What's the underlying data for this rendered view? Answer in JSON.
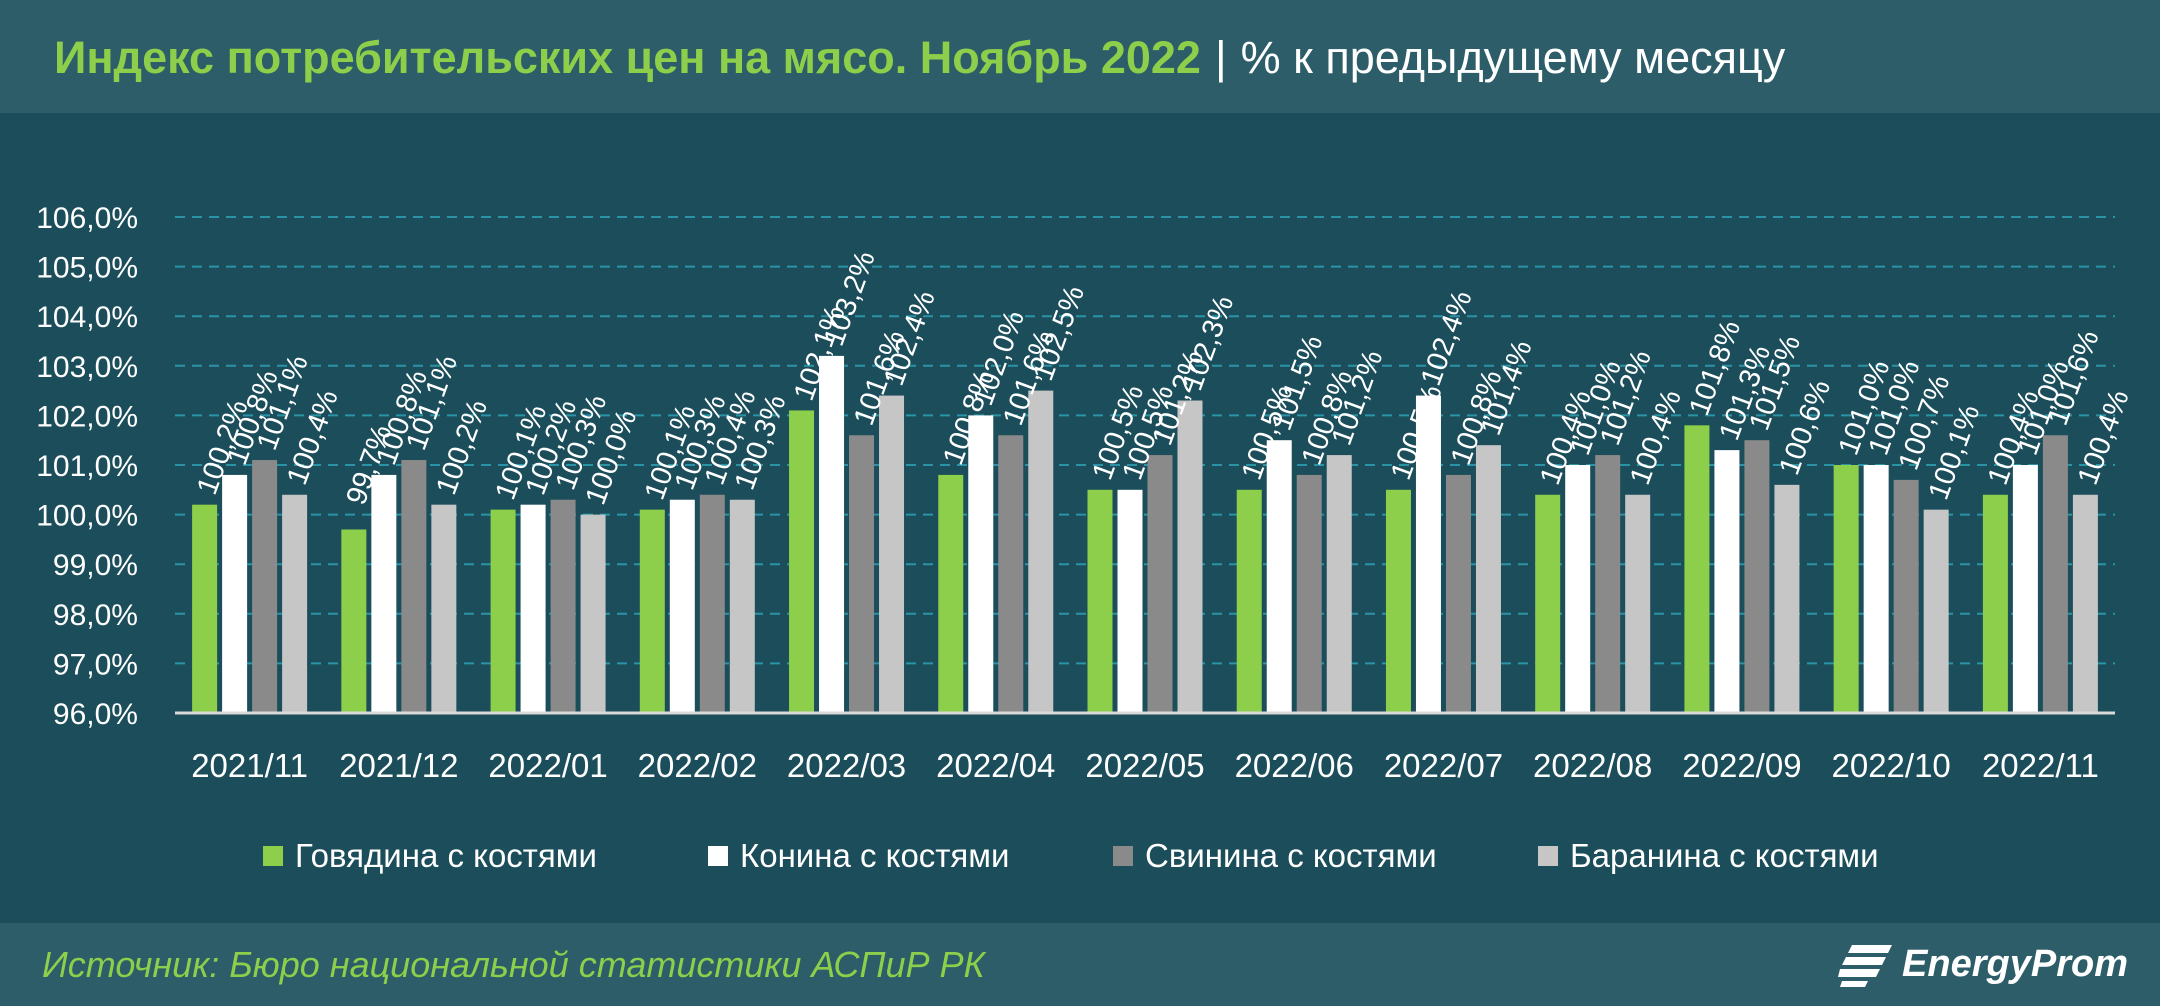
{
  "header": {
    "title": "Индекс потребительских цен на мясо. Ноябрь 2022",
    "separator": "|",
    "subtitle": "% к предыдущему месяцу"
  },
  "footer": {
    "source": "Источник: Бюро национальной статистики АСПиР РК",
    "logo_text": "EnergyProm",
    "logo_icon": "energyprom-logo-icon"
  },
  "colors": {
    "background": "#1b4d5a",
    "header_background": "#2c5d69",
    "title_green": "#8dcf4a",
    "gridline": "#2a94a6",
    "series": [
      "#8dcf4a",
      "#ffffff",
      "#8a8a8a",
      "#c6c6c6"
    ]
  },
  "chart_data": {
    "type": "bar",
    "title": "Индекс потребительских цен на мясо. Ноябрь 2022",
    "subtitle": "% к предыдущему месяцу",
    "categories": [
      "2021/11",
      "2021/12",
      "2022/01",
      "2022/02",
      "2022/03",
      "2022/04",
      "2022/05",
      "2022/06",
      "2022/07",
      "2022/08",
      "2022/09",
      "2022/10",
      "2022/11"
    ],
    "series": [
      {
        "name": "Говядина с костями",
        "values": [
          100.2,
          99.7,
          100.1,
          100.1,
          102.1,
          100.8,
          100.5,
          100.5,
          100.5,
          100.4,
          101.8,
          101.0,
          100.4
        ]
      },
      {
        "name": "Конина с костями",
        "values": [
          100.8,
          100.8,
          100.2,
          100.3,
          103.2,
          102.0,
          100.5,
          101.5,
          102.4,
          101.0,
          101.3,
          101.0,
          101.0
        ]
      },
      {
        "name": "Свинина с костями",
        "values": [
          101.1,
          101.1,
          100.3,
          100.4,
          101.6,
          101.6,
          101.2,
          100.8,
          100.8,
          101.2,
          101.5,
          100.7,
          101.6
        ]
      },
      {
        "name": "Баранина с костями",
        "values": [
          100.4,
          100.2,
          100.0,
          100.3,
          102.4,
          102.5,
          102.3,
          101.2,
          101.4,
          100.4,
          100.6,
          100.1,
          100.4
        ]
      }
    ],
    "data_labels": [
      [
        "100,2%",
        "99,7%",
        "100,1%",
        "100,1%",
        "102,1%",
        "100,8%",
        "100,5%",
        "100,5%",
        "100,5%",
        "100,4%",
        "101,8%",
        "101,0%",
        "100,4%"
      ],
      [
        "100,8%",
        "100,8%",
        "100,2%",
        "100,3%",
        "103,2%",
        "102,0%",
        "100,5%",
        "101,5%",
        "102,4%",
        "101,0%",
        "101,3%",
        "101,0%",
        "101,0%"
      ],
      [
        "101,1%",
        "101,1%",
        "100,3%",
        "100,4%",
        "101,6%",
        "101,6%",
        "101,2%",
        "100,8%",
        "100,8%",
        "101,2%",
        "101,5%",
        "100,7%",
        "101,6%"
      ],
      [
        "100,4%",
        "100,2%",
        "100,0%",
        "100,3%",
        "102,4%",
        "102,5%",
        "102,3%",
        "101,2%",
        "101,4%",
        "100,4%",
        "100,6%",
        "100,1%",
        "100,4%"
      ]
    ],
    "yticks": [
      96,
      97,
      98,
      99,
      100,
      101,
      102,
      103,
      104,
      105,
      106
    ],
    "ytick_labels": [
      "96,0%",
      "97,0%",
      "98,0%",
      "99,0%",
      "100,0%",
      "101,0%",
      "102,0%",
      "103,0%",
      "104,0%",
      "105,0%",
      "106,0%"
    ],
    "ylim": [
      96,
      106
    ],
    "grid": true,
    "legend_position": "bottom"
  }
}
